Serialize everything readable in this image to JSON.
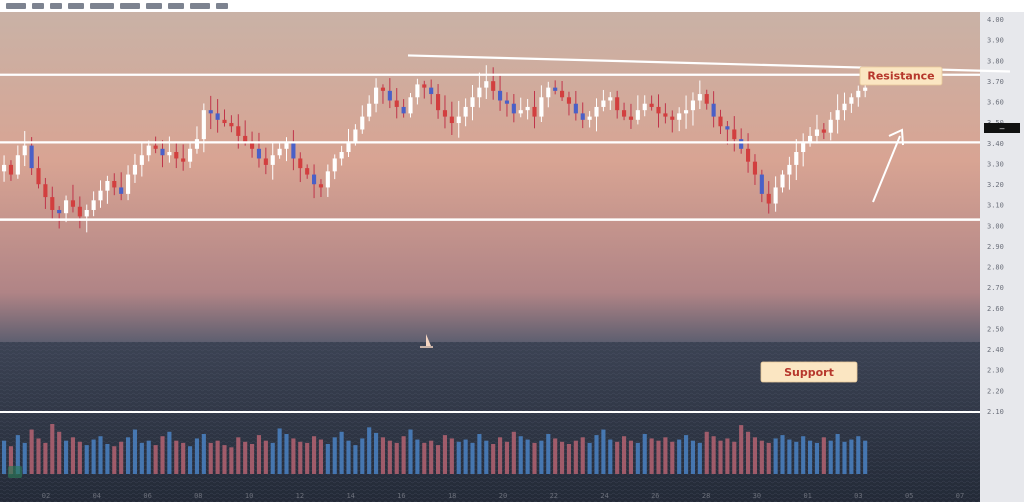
{
  "toolbar": {
    "placeholder_blocks": [
      5,
      3,
      3,
      4,
      6,
      5,
      4,
      4,
      5,
      3
    ]
  },
  "colors": {
    "sky_top": "#c9b2a6",
    "sky_mid": "#d8a493",
    "sky_low": "#b08486",
    "horizon": "#5e5f70",
    "sea_top": "#3c4354",
    "sea_bottom": "#232a37",
    "bull": "#ffffff",
    "bear": "#d23f3f",
    "bear_wick": "#c0344a",
    "blue": "#4a60c7",
    "volume_blue": "#4f8ed6",
    "volume_red": "#c76a78",
    "line": "#ffffff",
    "axis_bg": "#e7e8ec",
    "label_bg": "#fbe6c2"
  },
  "annotations": {
    "resistance_label": "Resistance",
    "support_label": "Support",
    "price_tag": "—"
  },
  "chart_data": {
    "type": "candlestick",
    "title": "",
    "xlabel": "",
    "ylabel": "",
    "ylim": [
      0,
      100
    ],
    "price_levels": {
      "top_line_start": 89,
      "top_line_end": 84,
      "resistance": 83,
      "mid_level": 62,
      "support": 38
    },
    "close_path": [
      55,
      52,
      58,
      61,
      54,
      49,
      45,
      41,
      40,
      44,
      42,
      39,
      41,
      44,
      47,
      50,
      48,
      46,
      52,
      55,
      58,
      61,
      60,
      58,
      59,
      57,
      56,
      60,
      63,
      72,
      71,
      69,
      68,
      67,
      64,
      62,
      60,
      57,
      55,
      58,
      60,
      62,
      57,
      54,
      52,
      49,
      48,
      53,
      57,
      59,
      62,
      66,
      70,
      74,
      79,
      78,
      75,
      73,
      71,
      76,
      80,
      79,
      77,
      72,
      70,
      68,
      70,
      73,
      76,
      79,
      81,
      78,
      75,
      74,
      71,
      72,
      73,
      70,
      76,
      79,
      78,
      76,
      74,
      71,
      69,
      70,
      73,
      75,
      76,
      72,
      70,
      69,
      72,
      74,
      73,
      71,
      70,
      69,
      71,
      72,
      75,
      77,
      74,
      70,
      67,
      66,
      63,
      60,
      56,
      52,
      46,
      43,
      48,
      52,
      55,
      59,
      62,
      64,
      66,
      65,
      69,
      72,
      74,
      76,
      78,
      79
    ],
    "volume": [
      30,
      25,
      35,
      28,
      40,
      32,
      28,
      45,
      38,
      30,
      33,
      29,
      26,
      31,
      34,
      27,
      25,
      29,
      33,
      40,
      28,
      30,
      26,
      34,
      38,
      30,
      28,
      25,
      32,
      36,
      28,
      30,
      26,
      24,
      33,
      29,
      27,
      35,
      30,
      28,
      41,
      36,
      32,
      29,
      28,
      34,
      31,
      27,
      33,
      38,
      30,
      26,
      32,
      42,
      37,
      33,
      30,
      28,
      34,
      40,
      31,
      28,
      30,
      26,
      35,
      32,
      29,
      31,
      28,
      36,
      30,
      27,
      33,
      29,
      38,
      34,
      31,
      28,
      30,
      36,
      32,
      29,
      27,
      30,
      33,
      28,
      35,
      40,
      31,
      29,
      34,
      30,
      28,
      36,
      32,
      30,
      33,
      29,
      31,
      35,
      30,
      28,
      38,
      34,
      30,
      32,
      29,
      44,
      38,
      33,
      30,
      28,
      32,
      35,
      31,
      29,
      34,
      30,
      28,
      33,
      30,
      36,
      29,
      31,
      34,
      30
    ],
    "y_tick_labels": [
      "4.00",
      "3.90",
      "3.80",
      "3.70",
      "3.60",
      "3.50",
      "3.40",
      "3.30",
      "3.20",
      "3.10",
      "3.00",
      "2.90",
      "2.80",
      "2.70",
      "2.60",
      "2.50",
      "2.40",
      "2.30",
      "2.20",
      "2.10"
    ],
    "x_tick_labels": [
      "02",
      "04",
      "06",
      "08",
      "10",
      "12",
      "14",
      "16",
      "18",
      "20",
      "22",
      "24",
      "26",
      "28",
      "30",
      "01",
      "03",
      "05",
      "07"
    ],
    "legend": "none",
    "grid": false
  }
}
